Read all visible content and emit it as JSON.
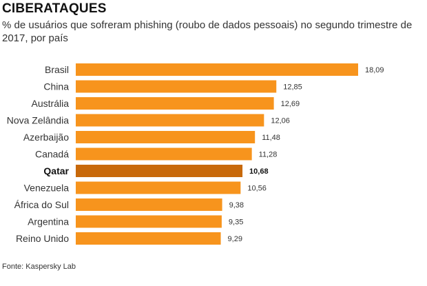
{
  "title": "CIBERATAQUES",
  "subtitle": "% de usuários que sofreram phishing (roubo de dados pessoais) no segundo trimestre de 2017, por país",
  "source": "Fonte: Kaspersky Lab",
  "colors": {
    "bar": "#f7941d",
    "highlight": "#c8690a"
  },
  "chart_data": {
    "type": "bar",
    "orientation": "horizontal",
    "title": "CIBERATAQUES",
    "subtitle": "% de usuários que sofreram phishing (roubo de dados pessoais) no segundo trimestre de 2017, por país",
    "categories": [
      "Brasil",
      "China",
      "Austrália",
      "Nova Zelândia",
      "Azerbaijão",
      "Canadá",
      "Qatar",
      "Venezuela",
      "África do Sul",
      "Argentina",
      "Reino Unido"
    ],
    "values": [
      18.09,
      12.85,
      12.69,
      12.06,
      11.48,
      11.28,
      10.68,
      10.56,
      9.38,
      9.35,
      9.29
    ],
    "value_labels": [
      "18,09",
      "12,85",
      "12,69",
      "12,06",
      "11,48",
      "11,28",
      "10,68",
      "10,56",
      "9,38",
      "9,35",
      "9,29"
    ],
    "highlight": "Qatar",
    "xlim": [
      0,
      18.09
    ],
    "grid": false,
    "legend": "none"
  }
}
